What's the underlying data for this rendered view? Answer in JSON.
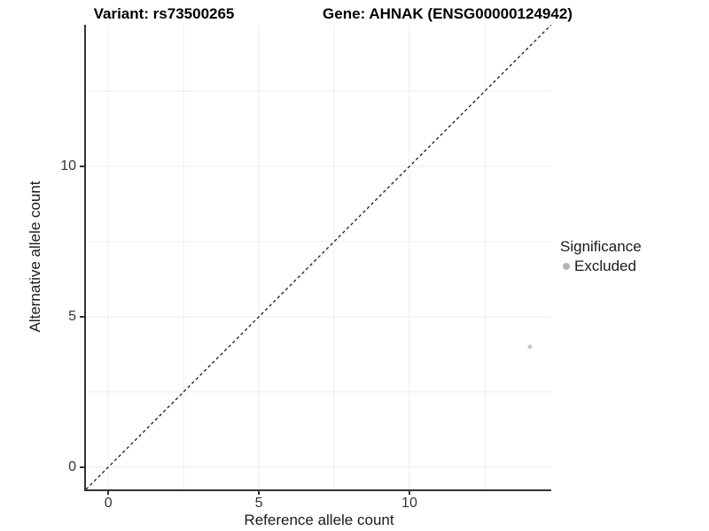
{
  "chart_data": {
    "type": "scatter",
    "titles": [
      "Variant: rs73500265",
      "Gene: AHNAK (ENSG00000124942)"
    ],
    "xlabel": "Reference allele count",
    "ylabel": "Alternative allele count",
    "xlim": [
      -0.74,
      14.71
    ],
    "ylim": [
      -0.74,
      14.71
    ],
    "x_ticks": [
      0,
      5,
      10
    ],
    "y_ticks": [
      0,
      5,
      10
    ],
    "x_minor_ticks": [
      2.5,
      7.5,
      12.5
    ],
    "y_minor_ticks": [
      2.5,
      7.5,
      12.5
    ],
    "grid": "major and minor gridlines, light gray on white",
    "identity_line": {
      "style": "dashed",
      "color": "#1a1a1a",
      "from": [
        -0.74,
        -0.74
      ],
      "to": [
        14.71,
        14.71
      ]
    },
    "series": [
      {
        "name": "Excluded",
        "color": "#c6c6c6",
        "point_radius": 2.5,
        "points": [
          {
            "x": 14,
            "y": 4
          }
        ]
      }
    ],
    "legend": {
      "title": "Significance",
      "position": "right",
      "entries": [
        {
          "label": "Excluded",
          "color": "#b2b2b2"
        }
      ]
    }
  },
  "colors": {
    "background": "#ffffff",
    "axis_line": "#333333",
    "tick_text": "#333333",
    "gridline": "#ececec"
  }
}
